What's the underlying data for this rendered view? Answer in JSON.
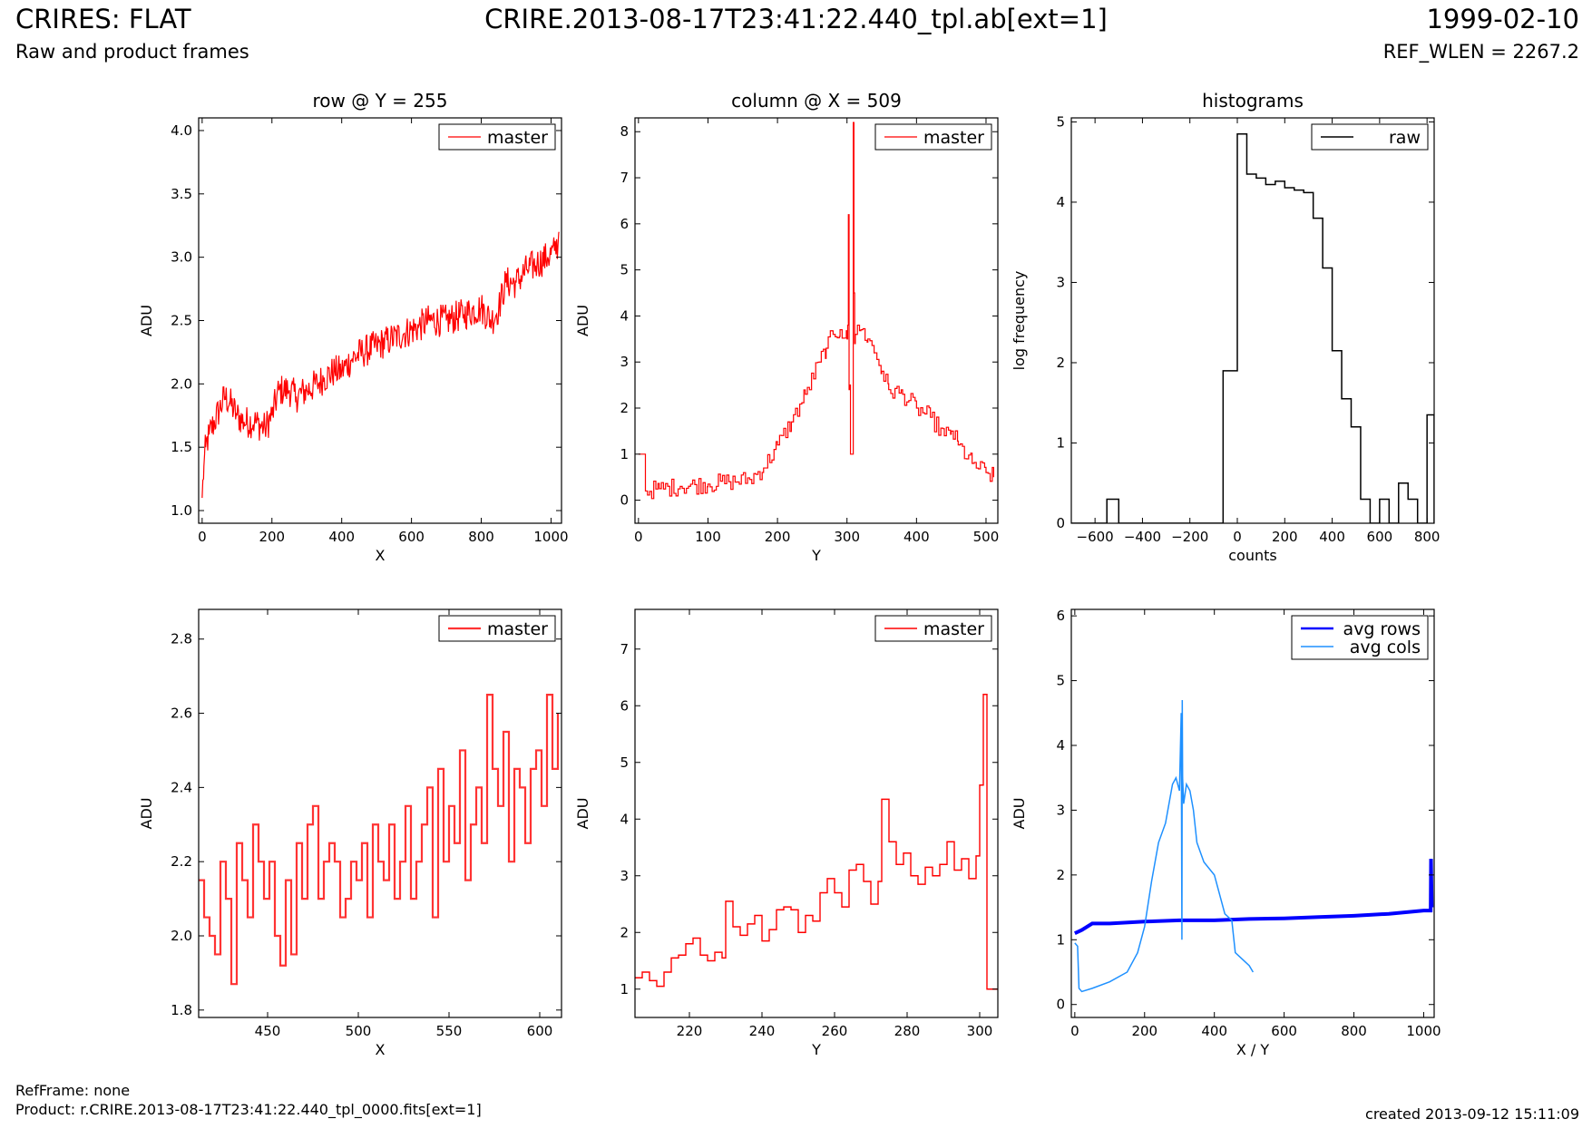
{
  "header": {
    "title": "CRIRES: FLAT",
    "subtitle": "Raw and product frames",
    "filename": "CRIRE.2013-08-17T23:41:22.440_tpl.ab[ext=1]",
    "date": "1999-02-10",
    "ref_wlen": "REF_WLEN = 2267.2"
  },
  "footer": {
    "ref_frame": "RefFrame: none",
    "product": "Product: r.CRIRE.2013-08-17T23:41:22.440_tpl_0000.fits[ext=1]",
    "created": "created 2013-09-12 15:11:09"
  },
  "colors": {
    "master": "#ff0000",
    "master_zoom": "#ff3333",
    "raw": "#000000",
    "avg_rows": "#0000ff",
    "avg_cols": "#1e90ff"
  },
  "chart_data": [
    {
      "id": "row",
      "type": "line",
      "title": "row @ Y = 255",
      "xlabel": "X",
      "ylabel": "ADU",
      "xlim": [
        -10,
        1030
      ],
      "ylim": [
        0.9,
        4.1
      ],
      "xticks": [
        0,
        200,
        400,
        600,
        800,
        1000
      ],
      "yticks": [
        1.0,
        1.5,
        2.0,
        2.5,
        3.0,
        3.5,
        4.0
      ],
      "ytick_decimals": 1,
      "legend": "top-right",
      "series": [
        {
          "name": "master",
          "color": "#ff0000",
          "width": 1.2,
          "steps": false,
          "x": [
            0,
            5,
            10,
            20,
            35,
            50,
            65,
            80,
            100,
            120,
            150,
            180,
            200,
            220,
            250,
            270,
            300,
            330,
            350,
            380,
            400,
            430,
            460,
            500,
            540,
            580,
            620,
            650,
            700,
            750,
            800,
            830,
            850,
            870,
            900,
            930,
            960,
            990,
            1010,
            1020,
            1023
          ],
          "y": [
            1.1,
            1.35,
            1.5,
            1.6,
            1.7,
            1.8,
            1.9,
            1.85,
            1.75,
            1.7,
            1.7,
            1.65,
            1.75,
            1.95,
            1.95,
            1.9,
            1.95,
            2.0,
            2.05,
            2.1,
            2.1,
            2.2,
            2.25,
            2.3,
            2.35,
            2.4,
            2.45,
            2.5,
            2.5,
            2.55,
            2.6,
            2.5,
            2.6,
            2.8,
            2.8,
            2.9,
            2.95,
            3.0,
            3.05,
            3.1,
            3.2
          ],
          "noise": 0.13,
          "noise_step": 2
        }
      ]
    },
    {
      "id": "col",
      "type": "line",
      "title": "column @ X = 509",
      "xlabel": "Y",
      "ylabel": "ADU",
      "xlim": [
        -5,
        517
      ],
      "ylim": [
        -0.5,
        8.3
      ],
      "xticks": [
        0,
        100,
        200,
        300,
        400,
        500
      ],
      "yticks": [
        0,
        1,
        2,
        3,
        4,
        5,
        6,
        7,
        8
      ],
      "ytick_decimals": 0,
      "legend": "top-right",
      "series": [
        {
          "name": "master",
          "color": "#ff0000",
          "width": 1.2,
          "steps": true,
          "x": [
            0,
            9,
            10,
            30,
            60,
            100,
            130,
            160,
            180,
            200,
            220,
            240,
            260,
            270,
            280,
            290,
            300,
            301,
            302,
            303,
            304,
            305,
            306,
            307,
            308,
            309,
            310,
            311,
            312,
            315,
            320,
            330,
            340,
            350,
            360,
            380,
            400,
            420,
            440,
            450,
            460,
            480,
            500,
            511
          ],
          "y": [
            1.0,
            1.0,
            0.2,
            0.25,
            0.3,
            0.35,
            0.4,
            0.45,
            0.7,
            1.2,
            1.7,
            2.3,
            3.0,
            3.3,
            3.6,
            3.7,
            3.5,
            3.8,
            6.2,
            2.4,
            2.5,
            1.0,
            1.0,
            1.0,
            1.0,
            8.2,
            4.5,
            3.4,
            3.6,
            3.8,
            3.7,
            3.5,
            3.2,
            2.8,
            2.4,
            2.3,
            2.0,
            1.8,
            1.4,
            1.5,
            1.2,
            0.8,
            0.6,
            0.5
          ],
          "noise": 0.2,
          "noise_step": 3,
          "noise_from": 12
        }
      ]
    },
    {
      "id": "hist",
      "type": "bar",
      "title": "histograms",
      "xlabel": "counts",
      "ylabel": "log frequency",
      "xlim": [
        -700,
        830
      ],
      "ylim": [
        0,
        5.05
      ],
      "xticks": [
        -600,
        -400,
        -200,
        0,
        200,
        400,
        600,
        800
      ],
      "yticks": [
        0,
        1,
        2,
        3,
        4,
        5
      ],
      "ytick_decimals": 0,
      "legend": "top-right",
      "series": [
        {
          "name": "raw",
          "color": "#000000",
          "width": 1.5,
          "bin_edges": [
            -700,
            -550,
            -500,
            -60,
            0,
            40,
            80,
            120,
            160,
            200,
            240,
            280,
            320,
            360,
            400,
            440,
            480,
            520,
            560,
            600,
            640,
            680,
            720,
            760,
            800,
            830
          ],
          "values": [
            0,
            0.3,
            0,
            1.9,
            4.85,
            4.35,
            4.3,
            4.22,
            4.26,
            4.18,
            4.15,
            4.12,
            3.8,
            3.18,
            2.15,
            1.55,
            1.2,
            0.3,
            0,
            0.3,
            0,
            0.5,
            0.3,
            0,
            1.35
          ]
        }
      ]
    },
    {
      "id": "rowzoom",
      "type": "line",
      "title": "",
      "xlabel": "X",
      "ylabel": "ADU",
      "xlim": [
        412,
        612
      ],
      "ylim": [
        1.78,
        2.88
      ],
      "xticks": [
        450,
        500,
        550,
        600
      ],
      "yticks": [
        1.8,
        2.0,
        2.2,
        2.4,
        2.6,
        2.8
      ],
      "ytick_decimals": 1,
      "legend": "top-right",
      "series": [
        {
          "name": "master",
          "color": "#ff3333",
          "width": 2.2,
          "steps": true,
          "x": [
            412,
            415,
            418,
            421,
            424,
            427,
            430,
            433,
            436,
            439,
            442,
            445,
            448,
            451,
            454,
            457,
            460,
            463,
            466,
            469,
            472,
            475,
            478,
            481,
            484,
            487,
            490,
            493,
            496,
            499,
            502,
            505,
            508,
            511,
            514,
            517,
            520,
            523,
            526,
            529,
            532,
            535,
            538,
            541,
            544,
            547,
            550,
            553,
            556,
            559,
            562,
            565,
            568,
            571,
            574,
            577,
            580,
            583,
            586,
            589,
            592,
            595,
            598,
            601,
            604,
            607,
            610
          ],
          "y": [
            2.15,
            2.05,
            2.0,
            1.95,
            2.2,
            2.1,
            1.87,
            2.25,
            2.15,
            2.05,
            2.3,
            2.2,
            2.1,
            2.2,
            2.0,
            1.92,
            2.15,
            1.95,
            2.25,
            2.1,
            2.3,
            2.35,
            2.1,
            2.2,
            2.25,
            2.2,
            2.05,
            2.1,
            2.2,
            2.15,
            2.25,
            2.05,
            2.3,
            2.2,
            2.15,
            2.3,
            2.1,
            2.2,
            2.35,
            2.1,
            2.2,
            2.3,
            2.4,
            2.05,
            2.45,
            2.2,
            2.35,
            2.25,
            2.5,
            2.15,
            2.3,
            2.4,
            2.25,
            2.65,
            2.45,
            2.35,
            2.55,
            2.2,
            2.45,
            2.4,
            2.25,
            2.45,
            2.5,
            2.35,
            2.65,
            2.45,
            2.6
          ]
        }
      ]
    },
    {
      "id": "colzoom",
      "type": "line",
      "title": "",
      "xlabel": "Y",
      "ylabel": "ADU",
      "xlim": [
        205,
        305
      ],
      "ylim": [
        0.5,
        7.7
      ],
      "xticks": [
        220,
        240,
        260,
        280,
        300
      ],
      "yticks": [
        1,
        2,
        3,
        4,
        5,
        6,
        7
      ],
      "ytick_decimals": 0,
      "legend": "top-right",
      "series": [
        {
          "name": "master",
          "color": "#ff0000",
          "width": 1.4,
          "steps": true,
          "x": [
            205,
            207,
            209,
            211,
            213,
            215,
            217,
            219,
            221,
            223,
            225,
            227,
            229,
            230,
            232,
            234,
            236,
            238,
            240,
            242,
            244,
            246,
            248,
            250,
            252,
            254,
            256,
            258,
            260,
            262,
            264,
            266,
            268,
            270,
            272,
            273,
            275,
            277,
            279,
            281,
            283,
            285,
            287,
            289,
            291,
            293,
            295,
            297,
            299,
            300,
            301,
            302,
            303,
            305
          ],
          "y": [
            1.2,
            1.3,
            1.15,
            1.05,
            1.3,
            1.55,
            1.6,
            1.8,
            1.9,
            1.6,
            1.5,
            1.65,
            1.55,
            2.55,
            2.1,
            1.95,
            2.15,
            2.3,
            1.85,
            2.05,
            2.4,
            2.45,
            2.4,
            2.0,
            2.3,
            2.2,
            2.7,
            2.95,
            2.7,
            2.45,
            3.1,
            3.2,
            2.9,
            2.5,
            2.9,
            4.35,
            3.6,
            3.2,
            3.4,
            3.0,
            2.85,
            3.15,
            3.0,
            3.2,
            3.6,
            3.1,
            3.3,
            2.95,
            3.35,
            4.6,
            6.2,
            1.0,
            1.0,
            1.0
          ]
        }
      ]
    },
    {
      "id": "avg",
      "type": "line",
      "title": "",
      "xlabel": "X / Y",
      "ylabel": "ADU",
      "xlim": [
        -10,
        1030
      ],
      "ylim": [
        -0.2,
        6.1
      ],
      "xticks": [
        0,
        200,
        400,
        600,
        800,
        1000
      ],
      "yticks": [
        0,
        1,
        2,
        3,
        4,
        5,
        6
      ],
      "ytick_decimals": 0,
      "legend": "top-right",
      "series": [
        {
          "name": "avg rows",
          "color": "#0000ff",
          "width": 4,
          "steps": false,
          "x": [
            0,
            20,
            50,
            100,
            200,
            300,
            400,
            500,
            600,
            700,
            800,
            900,
            1000,
            1020,
            1021,
            1023
          ],
          "y": [
            1.1,
            1.15,
            1.25,
            1.25,
            1.28,
            1.3,
            1.3,
            1.32,
            1.33,
            1.35,
            1.37,
            1.4,
            1.45,
            1.45,
            2.25,
            1.5
          ]
        },
        {
          "name": "avg cols",
          "color": "#1e90ff",
          "width": 1.5,
          "steps": false,
          "x": [
            0,
            8,
            12,
            20,
            50,
            100,
            150,
            180,
            200,
            220,
            240,
            260,
            280,
            290,
            300,
            305,
            307,
            308,
            309,
            312,
            320,
            330,
            340,
            350,
            370,
            400,
            430,
            450,
            460,
            480,
            500,
            511
          ],
          "y": [
            0.95,
            0.9,
            0.25,
            0.2,
            0.25,
            0.35,
            0.5,
            0.8,
            1.2,
            1.9,
            2.5,
            2.8,
            3.4,
            3.5,
            3.3,
            4.5,
            1.0,
            4.7,
            3.5,
            3.1,
            3.4,
            3.3,
            3.0,
            2.5,
            2.2,
            2.0,
            1.4,
            1.3,
            0.8,
            0.7,
            0.6,
            0.5
          ]
        }
      ]
    }
  ]
}
